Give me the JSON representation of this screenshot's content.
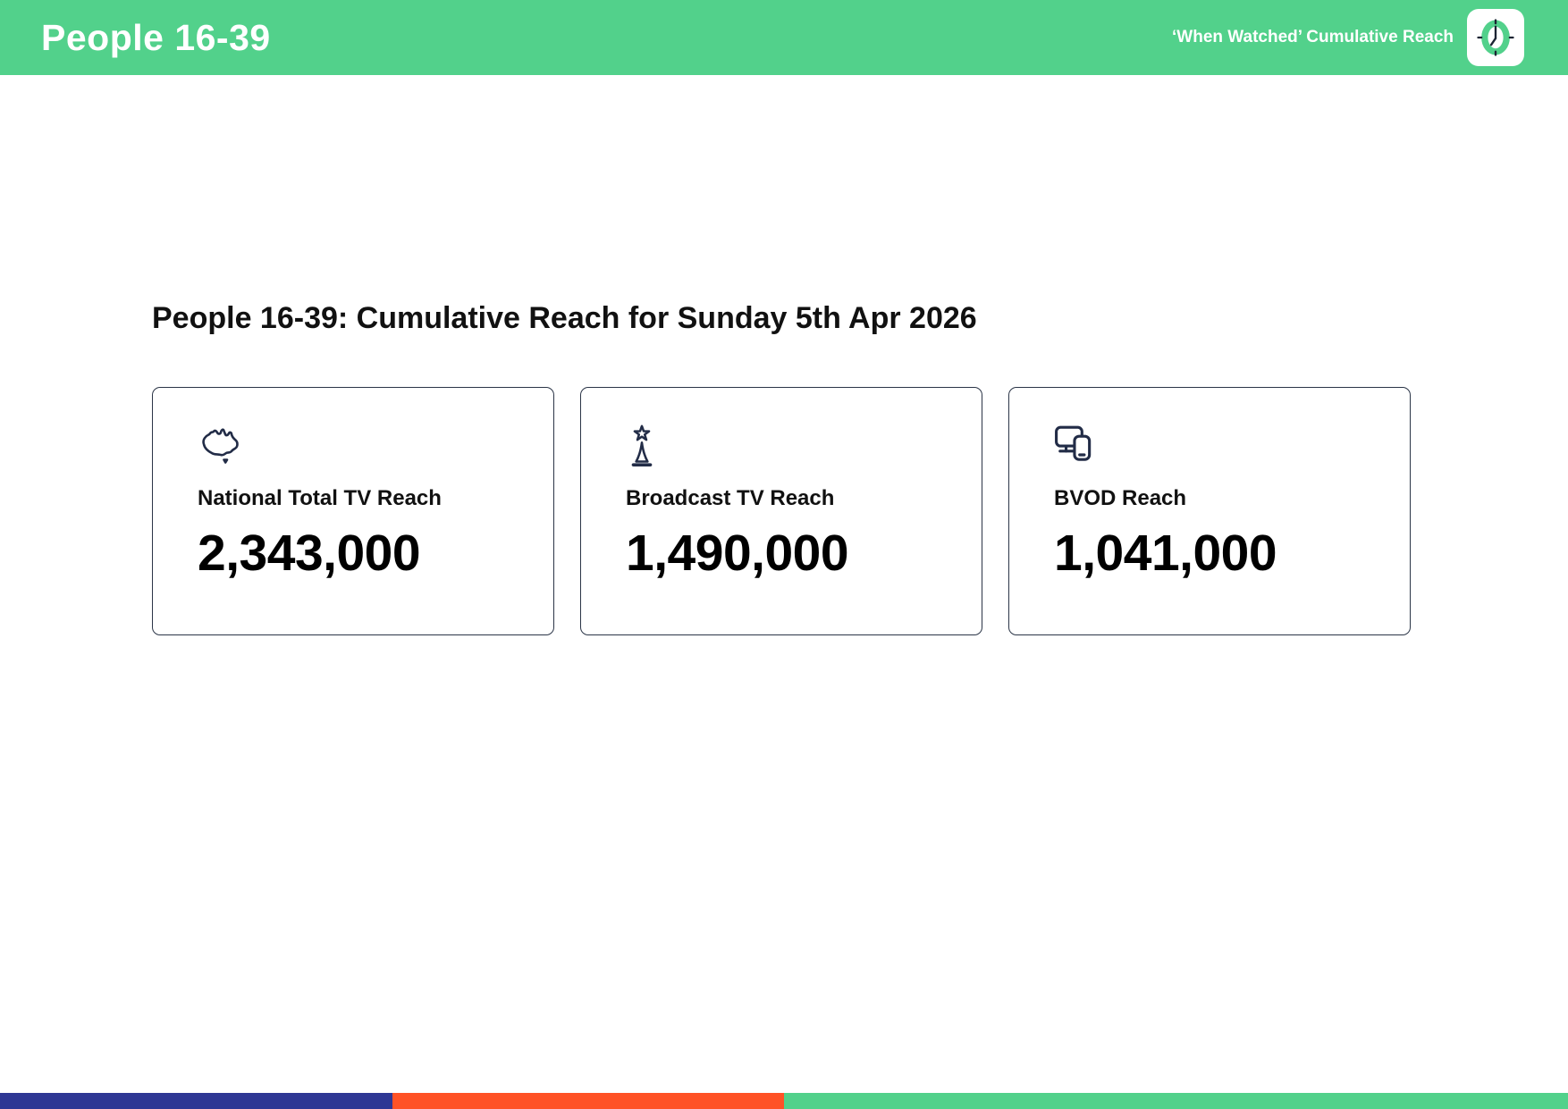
{
  "header": {
    "title": "People 16-39",
    "subtitle": "‘When Watched’ Cumulative Reach",
    "logo_icon": "clock-icon"
  },
  "main": {
    "heading": "People 16-39: Cumulative Reach for Sunday 5th Apr 2026",
    "cards": [
      {
        "icon": "australia-map-icon",
        "label": "National Total TV Reach",
        "value": "2,343,000"
      },
      {
        "icon": "broadcast-tower-icon",
        "label": "Broadcast TV Reach",
        "value": "1,490,000"
      },
      {
        "icon": "devices-icon",
        "label": "BVOD Reach",
        "value": "1,041,000"
      }
    ]
  },
  "footer": {
    "segments": [
      {
        "name": "blue-segment",
        "color": "#2e3794",
        "width_pct": 25
      },
      {
        "name": "orange-segment",
        "color": "#ff5226",
        "width_pct": 25
      },
      {
        "name": "green-segment",
        "color": "#52d18b",
        "width_pct": 50
      }
    ]
  },
  "colors": {
    "header_green": "#52d18b",
    "card_border": "#2b3547",
    "icon_navy": "#222c47"
  }
}
